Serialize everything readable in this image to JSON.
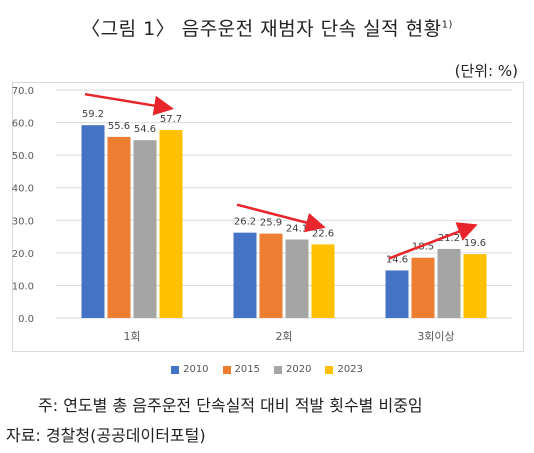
{
  "title": "〈그림 1〉 음주운전 재범자 단속 실적 현황",
  "title_sup": "1)",
  "unit": "(단위: %)",
  "note": "주: 연도별 총 음주운전 단속실적 대비 적발 횟수별 비중임",
  "source": "자료: 경찰청(공공데이터포털)",
  "colors": {
    "2010": "#4472c4",
    "2015": "#ed7d31",
    "2020": "#a5a5a5",
    "2023": "#ffc000",
    "arrow": "#e8252b",
    "grid": "#d9d9d9"
  },
  "chart_data": {
    "type": "bar",
    "categories": [
      "1회",
      "2회",
      "3회이상"
    ],
    "series": [
      {
        "name": "2010",
        "values": [
          59.2,
          26.2,
          14.6
        ]
      },
      {
        "name": "2015",
        "values": [
          55.6,
          25.9,
          18.5
        ]
      },
      {
        "name": "2020",
        "values": [
          54.6,
          24.1,
          21.2
        ]
      },
      {
        "name": "2023",
        "values": [
          57.7,
          22.6,
          19.6
        ]
      }
    ],
    "yticks": [
      "0.0",
      "10.0",
      "20.0",
      "30.0",
      "40.0",
      "50.0",
      "60.0",
      "70.0"
    ],
    "ylim": [
      0,
      70
    ],
    "grid": true,
    "legend_position": "bottom",
    "data_labels": true,
    "trend_arrows": "red arrows above each category group"
  }
}
